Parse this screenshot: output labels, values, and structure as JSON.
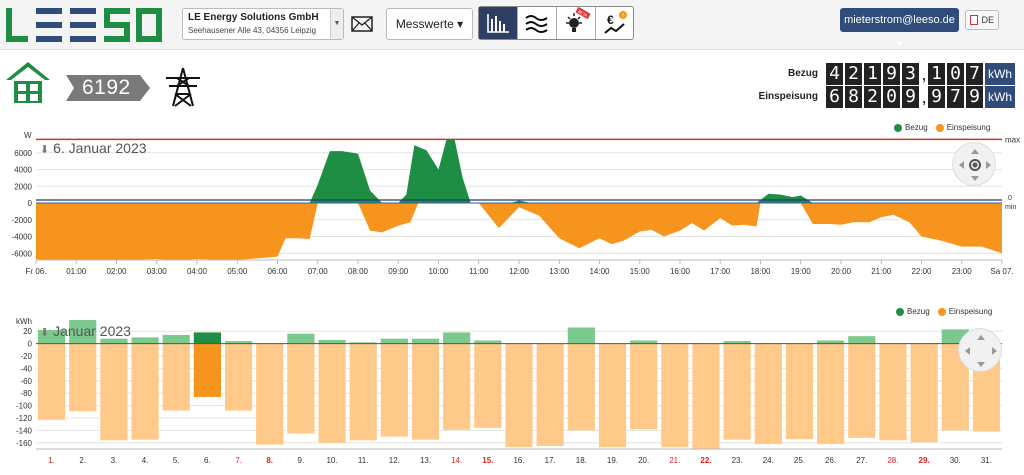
{
  "header": {
    "logo_text": "LEESO",
    "company_name": "LE Energy Solutions GmbH",
    "company_address": "Seehausener Alle 43, 04356 Leipzig",
    "mail_icon": "mail-icon",
    "measure_button": "Messwerte",
    "view_icons": [
      "bar-chart-icon",
      "waves-icon",
      "lightbulb-beta-icon",
      "euro-trend-icon"
    ],
    "beta_label": "BETA",
    "account": "mieterstrom@leeso.de",
    "language": "DE"
  },
  "meter": {
    "number": "6192",
    "bezug_label": "Bezug",
    "bezug_int": [
      "4",
      "2",
      "1",
      "9",
      "3"
    ],
    "bezug_dec": [
      "1",
      "0",
      "7"
    ],
    "einspeisung_label": "Einspeisung",
    "einspeisung_int": [
      "6",
      "8",
      "2",
      "0",
      "9"
    ],
    "einspeisung_dec": [
      "9",
      "7",
      "9"
    ],
    "unit": "kWh"
  },
  "colors": {
    "bezug": "#1e8e45",
    "einspeisung": "#f7941d",
    "einspeisung_light": "#ffc98a",
    "bezug_light": "#7cc98e",
    "max_line": "#c0392b",
    "min_line": "#3b5ea8",
    "accent": "#2f4c7a"
  },
  "chart_data": [
    {
      "type": "area",
      "title": "6. Januar 2023",
      "ylabel": "W",
      "ylim": [
        -6800,
        8000
      ],
      "yticks": [
        6000,
        4000,
        2000,
        0,
        -2000,
        -4000,
        -6000
      ],
      "xtick_labels": [
        "Fr 06.",
        "01:00",
        "02:00",
        "03:00",
        "04:00",
        "05:00",
        "06:00",
        "07:00",
        "08:00",
        "09:00",
        "10:00",
        "11:00",
        "12:00",
        "13:00",
        "14:00",
        "15:00",
        "16:00",
        "17:00",
        "18:00",
        "19:00",
        "20:00",
        "21:00",
        "22:00",
        "23:00",
        "Sa 07."
      ],
      "max_label": "max",
      "zero_label": "0",
      "min_label": "min",
      "legend": [
        "Bezug",
        "Einspeisung"
      ],
      "series": [
        {
          "name": "Bezug",
          "x": [
            0,
            6.8,
            7.0,
            7.3,
            7.6,
            8.0,
            8.3,
            8.6,
            9.0,
            9.2,
            9.4,
            9.7,
            10.0,
            10.2,
            10.4,
            10.6,
            10.8,
            11.0,
            11.3,
            11.8,
            12.0,
            12.3,
            17.9,
            18.2,
            18.5,
            18.8,
            19.0,
            19.3,
            24
          ],
          "values": [
            0,
            0,
            2200,
            6200,
            6200,
            5900,
            1500,
            0,
            0,
            1000,
            6900,
            6300,
            4000,
            7600,
            7600,
            3000,
            0,
            0,
            0,
            0,
            300,
            0,
            0,
            1100,
            1000,
            700,
            900,
            0,
            0
          ]
        },
        {
          "name": "Einspeisung",
          "x": [
            0,
            0.3,
            1.0,
            2.0,
            3.0,
            3.5,
            4.0,
            5.0,
            5.5,
            6.0,
            6.2,
            6.5,
            6.8,
            7.0,
            8.0,
            8.3,
            8.6,
            9.0,
            9.3,
            9.5,
            11.0,
            11.5,
            12.0,
            12.5,
            13.0,
            13.5,
            14.0,
            14.3,
            14.6,
            15.0,
            15.3,
            15.6,
            16.0,
            16.3,
            16.6,
            17.0,
            17.3,
            17.6,
            17.9,
            18.0,
            19.0,
            19.3,
            19.7,
            20.0,
            20.3,
            20.7,
            21.0,
            21.3,
            21.7,
            22.0,
            22.5,
            23.0,
            23.5,
            24.0
          ],
          "values": [
            -6700,
            -6800,
            -6800,
            -6800,
            -6700,
            -6800,
            -6700,
            -6800,
            -6600,
            -6400,
            -4200,
            -4200,
            -4300,
            0,
            0,
            -3300,
            -3500,
            -2700,
            -2300,
            0,
            0,
            -3000,
            -500,
            -1500,
            -4200,
            -5400,
            -4200,
            -4900,
            -4500,
            -3400,
            -3200,
            -4000,
            -3300,
            -2400,
            -3300,
            -1800,
            -2700,
            -2600,
            -2800,
            0,
            0,
            -2500,
            -2500,
            -2600,
            -2300,
            -2300,
            -1700,
            -1400,
            -2300,
            -4000,
            -4500,
            -5200,
            -5200,
            -6000
          ]
        }
      ]
    },
    {
      "type": "bar",
      "title": "Januar 2023",
      "ylabel": "kWh",
      "ylim": [
        -170,
        30
      ],
      "yticks": [
        20,
        0,
        -20,
        -40,
        -60,
        -80,
        -100,
        -120,
        -140,
        -160
      ],
      "categories": [
        "1.",
        "2.",
        "3.",
        "4.",
        "5.",
        "6.",
        "7.",
        "8.",
        "9.",
        "10.",
        "11.",
        "12.",
        "13.",
        "14.",
        "15.",
        "16.",
        "17.",
        "18.",
        "19.",
        "20.",
        "21.",
        "22.",
        "23.",
        "24.",
        "25.",
        "26.",
        "27.",
        "28.",
        "29.",
        "30.",
        "31."
      ],
      "weekend_categories": [
        "1.",
        "7.",
        "8.",
        "14.",
        "15.",
        "21.",
        "22.",
        "28.",
        "29."
      ],
      "highlight_index": 5,
      "legend": [
        "Bezug",
        "Einspeisung"
      ],
      "series": [
        {
          "name": "Bezug",
          "values": [
            22,
            38,
            8,
            10,
            14,
            18,
            4,
            0,
            16,
            6,
            2,
            8,
            8,
            18,
            5,
            0,
            0,
            26,
            0,
            5,
            0,
            0,
            4,
            0,
            0,
            5,
            12,
            0,
            0,
            23,
            3
          ]
        },
        {
          "name": "Einspeisung",
          "values": [
            -123,
            -109,
            -156,
            -155,
            -108,
            -86,
            -108,
            -163,
            -145,
            -160,
            -156,
            -150,
            -155,
            -139,
            -136,
            -167,
            -165,
            -140,
            -167,
            -138,
            -167,
            -171,
            -155,
            -162,
            -154,
            -162,
            -152,
            -156,
            -159,
            -140,
            -142
          ]
        }
      ]
    }
  ]
}
